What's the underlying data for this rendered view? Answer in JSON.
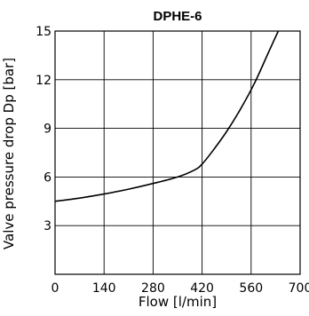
{
  "chart_data": {
    "type": "line",
    "title": "DPHE-6",
    "xlabel": "Flow [l/min]",
    "ylabel": "Valve pressure drop Dp [bar]",
    "xlim": [
      0,
      700
    ],
    "ylim": [
      0,
      15
    ],
    "x_ticks": [
      0,
      140,
      280,
      420,
      560,
      700
    ],
    "y_ticks": [
      3,
      6,
      9,
      12,
      15
    ],
    "grid": true,
    "legend": "none",
    "colors": {
      "line": "#000000",
      "grid": "#000000",
      "background": "#ffffff"
    },
    "series": [
      {
        "x": [
          0,
          70,
          140,
          210,
          280,
          350,
          400,
          420,
          450,
          490,
          530,
          570,
          610,
          640,
          650
        ],
        "y": [
          4.5,
          4.7,
          4.95,
          5.25,
          5.6,
          6.0,
          6.45,
          6.8,
          7.6,
          8.8,
          10.2,
          11.8,
          13.7,
          15.1,
          15.4
        ]
      }
    ]
  }
}
